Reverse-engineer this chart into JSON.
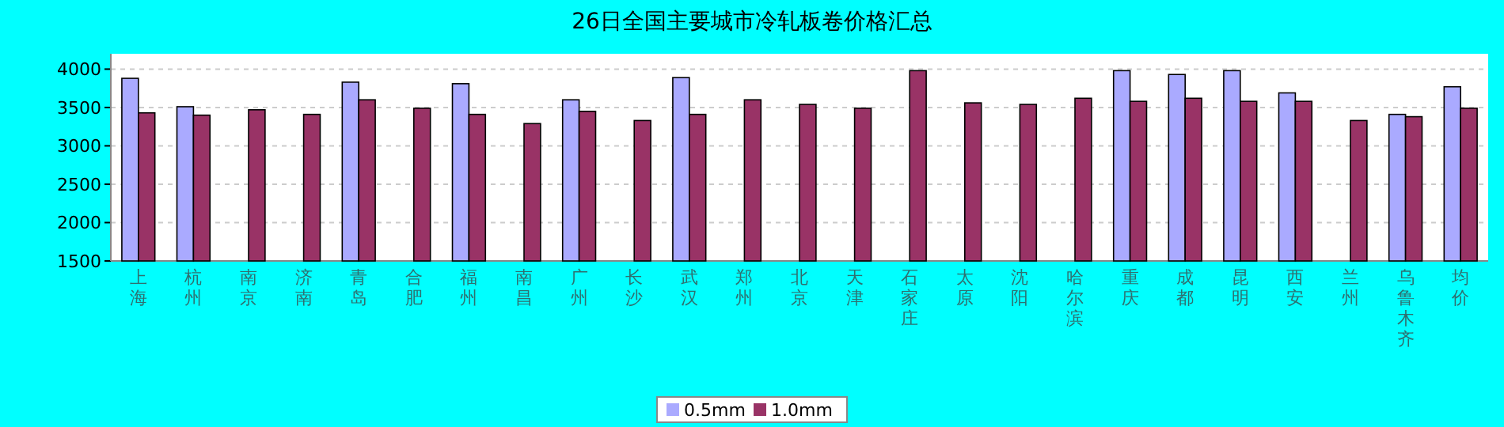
{
  "chart_data": {
    "type": "bar",
    "title": "26日全国主要城市冷轧板卷价格汇总",
    "categories": [
      "上海",
      "杭州",
      "南京",
      "济南",
      "青岛",
      "合肥",
      "福州",
      "南昌",
      "广州",
      "长沙",
      "武汉",
      "郑州",
      "北京",
      "天津",
      "石家庄",
      "太原",
      "沈阳",
      "哈尔滨",
      "重庆",
      "成都",
      "昆明",
      "西安",
      "兰州",
      "乌鲁木齐",
      "均价"
    ],
    "series": [
      {
        "name": "0.5mm",
        "color": "#aaaaff",
        "values": [
          3880,
          3510,
          null,
          null,
          3830,
          null,
          3810,
          null,
          3600,
          null,
          3890,
          null,
          null,
          null,
          null,
          null,
          null,
          null,
          3980,
          3930,
          3980,
          3690,
          null,
          3410,
          3770
        ]
      },
      {
        "name": "1.0mm",
        "color": "#993366",
        "values": [
          3430,
          3400,
          3470,
          3410,
          3600,
          3490,
          3410,
          3290,
          3450,
          3330,
          3410,
          3600,
          3540,
          3490,
          3980,
          3560,
          3540,
          3620,
          3580,
          3620,
          3580,
          3580,
          3330,
          3380,
          3490
        ]
      }
    ],
    "ylim": [
      1500,
      4200
    ],
    "yticks": [
      1500,
      2000,
      2500,
      3000,
      3500,
      4000
    ],
    "grid": "y",
    "legend": "bottom"
  }
}
